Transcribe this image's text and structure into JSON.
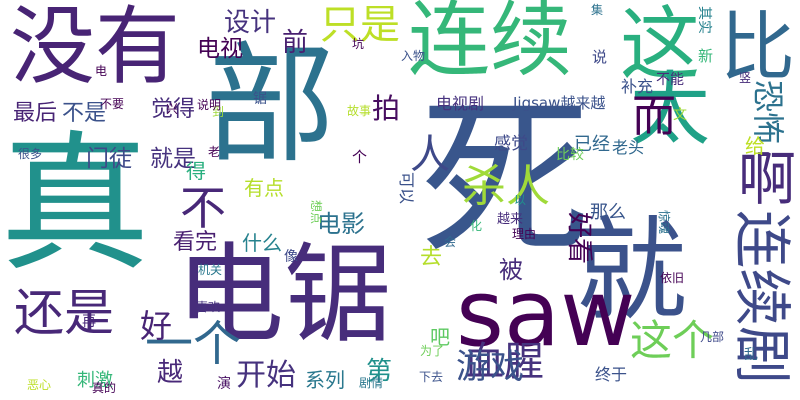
{
  "words": [
    {
      "text": "死",
      "color": "#39568c"
    },
    {
      "text": "部",
      "color": "#2c728e"
    },
    {
      "text": "真",
      "color": "#21918c"
    },
    {
      "text": "电锯",
      "color": "#472d7b"
    },
    {
      "text": "就",
      "color": "#3b528b"
    },
    {
      "text": "saw",
      "color": "#440154"
    },
    {
      "text": "没有",
      "color": "#482475"
    },
    {
      "text": "连续",
      "color": "#35b779"
    },
    {
      "text": "这",
      "color": "#29af7f"
    },
    {
      "text": "比",
      "color": "#31688e"
    },
    {
      "text": "太",
      "color": "#1fa187"
    },
    {
      "text": "连续剧",
      "color": "#3e4989"
    },
    {
      "text": "啊",
      "color": "#472c7a"
    },
    {
      "text": "还是",
      "color": "#482878"
    },
    {
      "text": "一个",
      "color": "#31688e"
    },
    {
      "text": "血腥",
      "color": "#46327e"
    },
    {
      "text": "这个",
      "color": "#6ece58"
    },
    {
      "text": "杀人",
      "color": "#a0da39"
    },
    {
      "text": "游戏",
      "color": "#3b528b"
    },
    {
      "text": "只是",
      "color": "#bddf26"
    },
    {
      "text": "而",
      "color": "#440154"
    },
    {
      "text": "人",
      "color": "#3e4989"
    },
    {
      "text": "不",
      "color": "#482878"
    },
    {
      "text": "好",
      "color": "#482475"
    },
    {
      "text": "越",
      "color": "#482878"
    },
    {
      "text": "开始",
      "color": "#46327e"
    },
    {
      "text": "拍",
      "color": "#470d60"
    },
    {
      "text": "恐怖",
      "color": "#2c728e"
    },
    {
      "text": "设计",
      "color": "#46327e"
    },
    {
      "text": "电视",
      "color": "#440154"
    },
    {
      "text": "前",
      "color": "#481f70"
    },
    {
      "text": "最后",
      "color": "#482475"
    },
    {
      "text": "不是",
      "color": "#3b528b"
    },
    {
      "text": "觉得",
      "color": "#472d7b"
    },
    {
      "text": "门徒",
      "color": "#3e4989"
    },
    {
      "text": "就是",
      "color": "#46327e"
    },
    {
      "text": "有点",
      "color": "#b5de2b"
    },
    {
      "text": "电影",
      "color": "#2c728e"
    },
    {
      "text": "看完",
      "color": "#481f70"
    },
    {
      "text": "什么",
      "color": "#26828e"
    },
    {
      "text": "被",
      "color": "#472d7b"
    },
    {
      "text": "好看",
      "color": "#440154"
    },
    {
      "text": "那么",
      "color": "#39568c"
    },
    {
      "text": "系列",
      "color": "#2a788e"
    },
    {
      "text": "第",
      "color": "#21918c"
    },
    {
      "text": "吧",
      "color": "#5ec962"
    },
    {
      "text": "刺激",
      "color": "#35b779"
    },
    {
      "text": "演",
      "color": "#471063"
    },
    {
      "text": "电视剧",
      "color": "#46327e"
    },
    {
      "text": "Jigsaw越来越",
      "color": "#3b528b"
    },
    {
      "text": "感觉",
      "color": "#3e4989"
    },
    {
      "text": "已经",
      "color": "#31688e"
    },
    {
      "text": "补充",
      "color": "#3b528b"
    },
    {
      "text": "不能",
      "color": "#472d7b"
    },
    {
      "text": "老头",
      "color": "#31688e"
    },
    {
      "text": "给",
      "color": "#bddf26"
    },
    {
      "text": "得",
      "color": "#29af7f"
    },
    {
      "text": "可以",
      "color": "#3b528b"
    },
    {
      "text": "越来",
      "color": "#472d7b"
    },
    {
      "text": "去",
      "color": "#b5de2b"
    },
    {
      "text": "个",
      "color": "#440154"
    },
    {
      "text": "比较",
      "color": "#6ece58"
    },
    {
      "text": "其实",
      "color": "#26828e"
    },
    {
      "text": "集",
      "color": "#2c728e"
    },
    {
      "text": "新",
      "color": "#35b779"
    },
    {
      "text": "说",
      "color": "#3e4989"
    },
    {
      "text": "竖",
      "color": "#472c7a"
    },
    {
      "text": "坑",
      "color": "#440154"
    },
    {
      "text": "入物",
      "color": "#3b528b"
    },
    {
      "text": "锯",
      "color": "#3b528b"
    },
    {
      "text": "到",
      "color": "#a0da39"
    },
    {
      "text": "说明",
      "color": "#440154"
    },
    {
      "text": "以",
      "color": "#21918c"
    },
    {
      "text": "化",
      "color": "#35b779"
    },
    {
      "text": "会",
      "color": "#31688e"
    },
    {
      "text": "理由",
      "color": "#440154"
    },
    {
      "text": "想点",
      "color": "#6ece58"
    },
    {
      "text": "惊魂",
      "color": "#2c728e"
    },
    {
      "text": "故事",
      "color": "#b5de2b"
    },
    {
      "text": "很多",
      "color": "#3b528b"
    },
    {
      "text": "老",
      "color": "#440154"
    },
    {
      "text": "文",
      "color": "#a0da39"
    },
    {
      "text": "机关",
      "color": "#2a788e"
    },
    {
      "text": "像",
      "color": "#3e4989"
    },
    {
      "text": "喜欢",
      "color": "#46327e"
    },
    {
      "text": "依旧",
      "color": "#440154"
    },
    {
      "text": "几部",
      "color": "#3e4989"
    },
    {
      "text": "为了",
      "color": "#6ece58"
    },
    {
      "text": "乱",
      "color": "#31688e"
    },
    {
      "text": "恶心",
      "color": "#bddf26"
    },
    {
      "text": "剧情",
      "color": "#2a788e"
    },
    {
      "text": "下去",
      "color": "#3b528b"
    },
    {
      "text": "终于",
      "color": "#3b528b"
    },
    {
      "text": "真的",
      "color": "#440154"
    },
    {
      "text": "再",
      "color": "#482878"
    },
    {
      "text": "电",
      "color": "#440154"
    },
    {
      "text": "不要",
      "color": "#440154"
    },
    {
      "text": "兴",
      "color": "#440154"
    }
  ]
}
